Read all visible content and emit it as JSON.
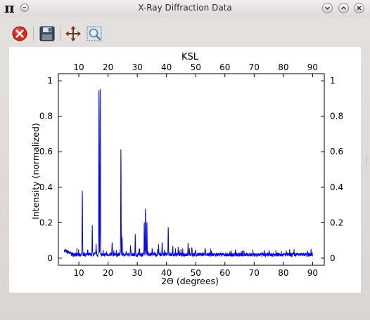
{
  "window": {
    "title": "X-Ray Diffraction Data",
    "app_icon": "π",
    "buttons": [
      "minimize",
      "maximize",
      "close"
    ]
  },
  "toolbar": {
    "icons": [
      "close-red-icon",
      "save-icon",
      "pan-icon",
      "zoom-icon"
    ]
  },
  "colors": {
    "line": "#0000ee",
    "plot_bg": "#ffffff",
    "window_bg": "#dedad8"
  },
  "chart_data": {
    "type": "line",
    "title": "KSL",
    "xlabel": "2Θ (degrees)",
    "ylabel": "Intensity (normalized)",
    "xlim": [
      3,
      94
    ],
    "ylim": [
      -0.04,
      1.04
    ],
    "x_ticks": [
      10,
      20,
      30,
      40,
      50,
      60,
      70,
      80,
      90
    ],
    "y_ticks": [
      0,
      0.2,
      0.4,
      0.6,
      0.8,
      1
    ],
    "y_tick_labels": [
      "0",
      "0.2",
      "0.4",
      "0.6",
      "0.8",
      "1"
    ],
    "grid": false,
    "legend": "none",
    "series": [
      {
        "x_range": [
          5,
          90
        ],
        "baseline": 0.02,
        "peaks": [
          {
            "x": 11.2,
            "y": 0.41
          },
          {
            "x": 14.6,
            "y": 0.18
          },
          {
            "x": 15.9,
            "y": 0.06
          },
          {
            "x": 16.9,
            "y": 1.0
          },
          {
            "x": 17.3,
            "y": 0.95
          },
          {
            "x": 21.4,
            "y": 0.1
          },
          {
            "x": 24.4,
            "y": 0.645
          },
          {
            "x": 24.8,
            "y": 0.12
          },
          {
            "x": 27.7,
            "y": 0.08
          },
          {
            "x": 29.3,
            "y": 0.13
          },
          {
            "x": 30.6,
            "y": 0.05
          },
          {
            "x": 32.4,
            "y": 0.2
          },
          {
            "x": 32.8,
            "y": 0.295
          },
          {
            "x": 33.3,
            "y": 0.22
          },
          {
            "x": 35.1,
            "y": 0.06
          },
          {
            "x": 37.3,
            "y": 0.07
          },
          {
            "x": 38.5,
            "y": 0.1
          },
          {
            "x": 40.6,
            "y": 0.19
          },
          {
            "x": 42.1,
            "y": 0.06
          },
          {
            "x": 44.0,
            "y": 0.06
          },
          {
            "x": 47.4,
            "y": 0.09
          },
          {
            "x": 48.7,
            "y": 0.07
          },
          {
            "x": 53.2,
            "y": 0.05
          }
        ]
      }
    ]
  }
}
